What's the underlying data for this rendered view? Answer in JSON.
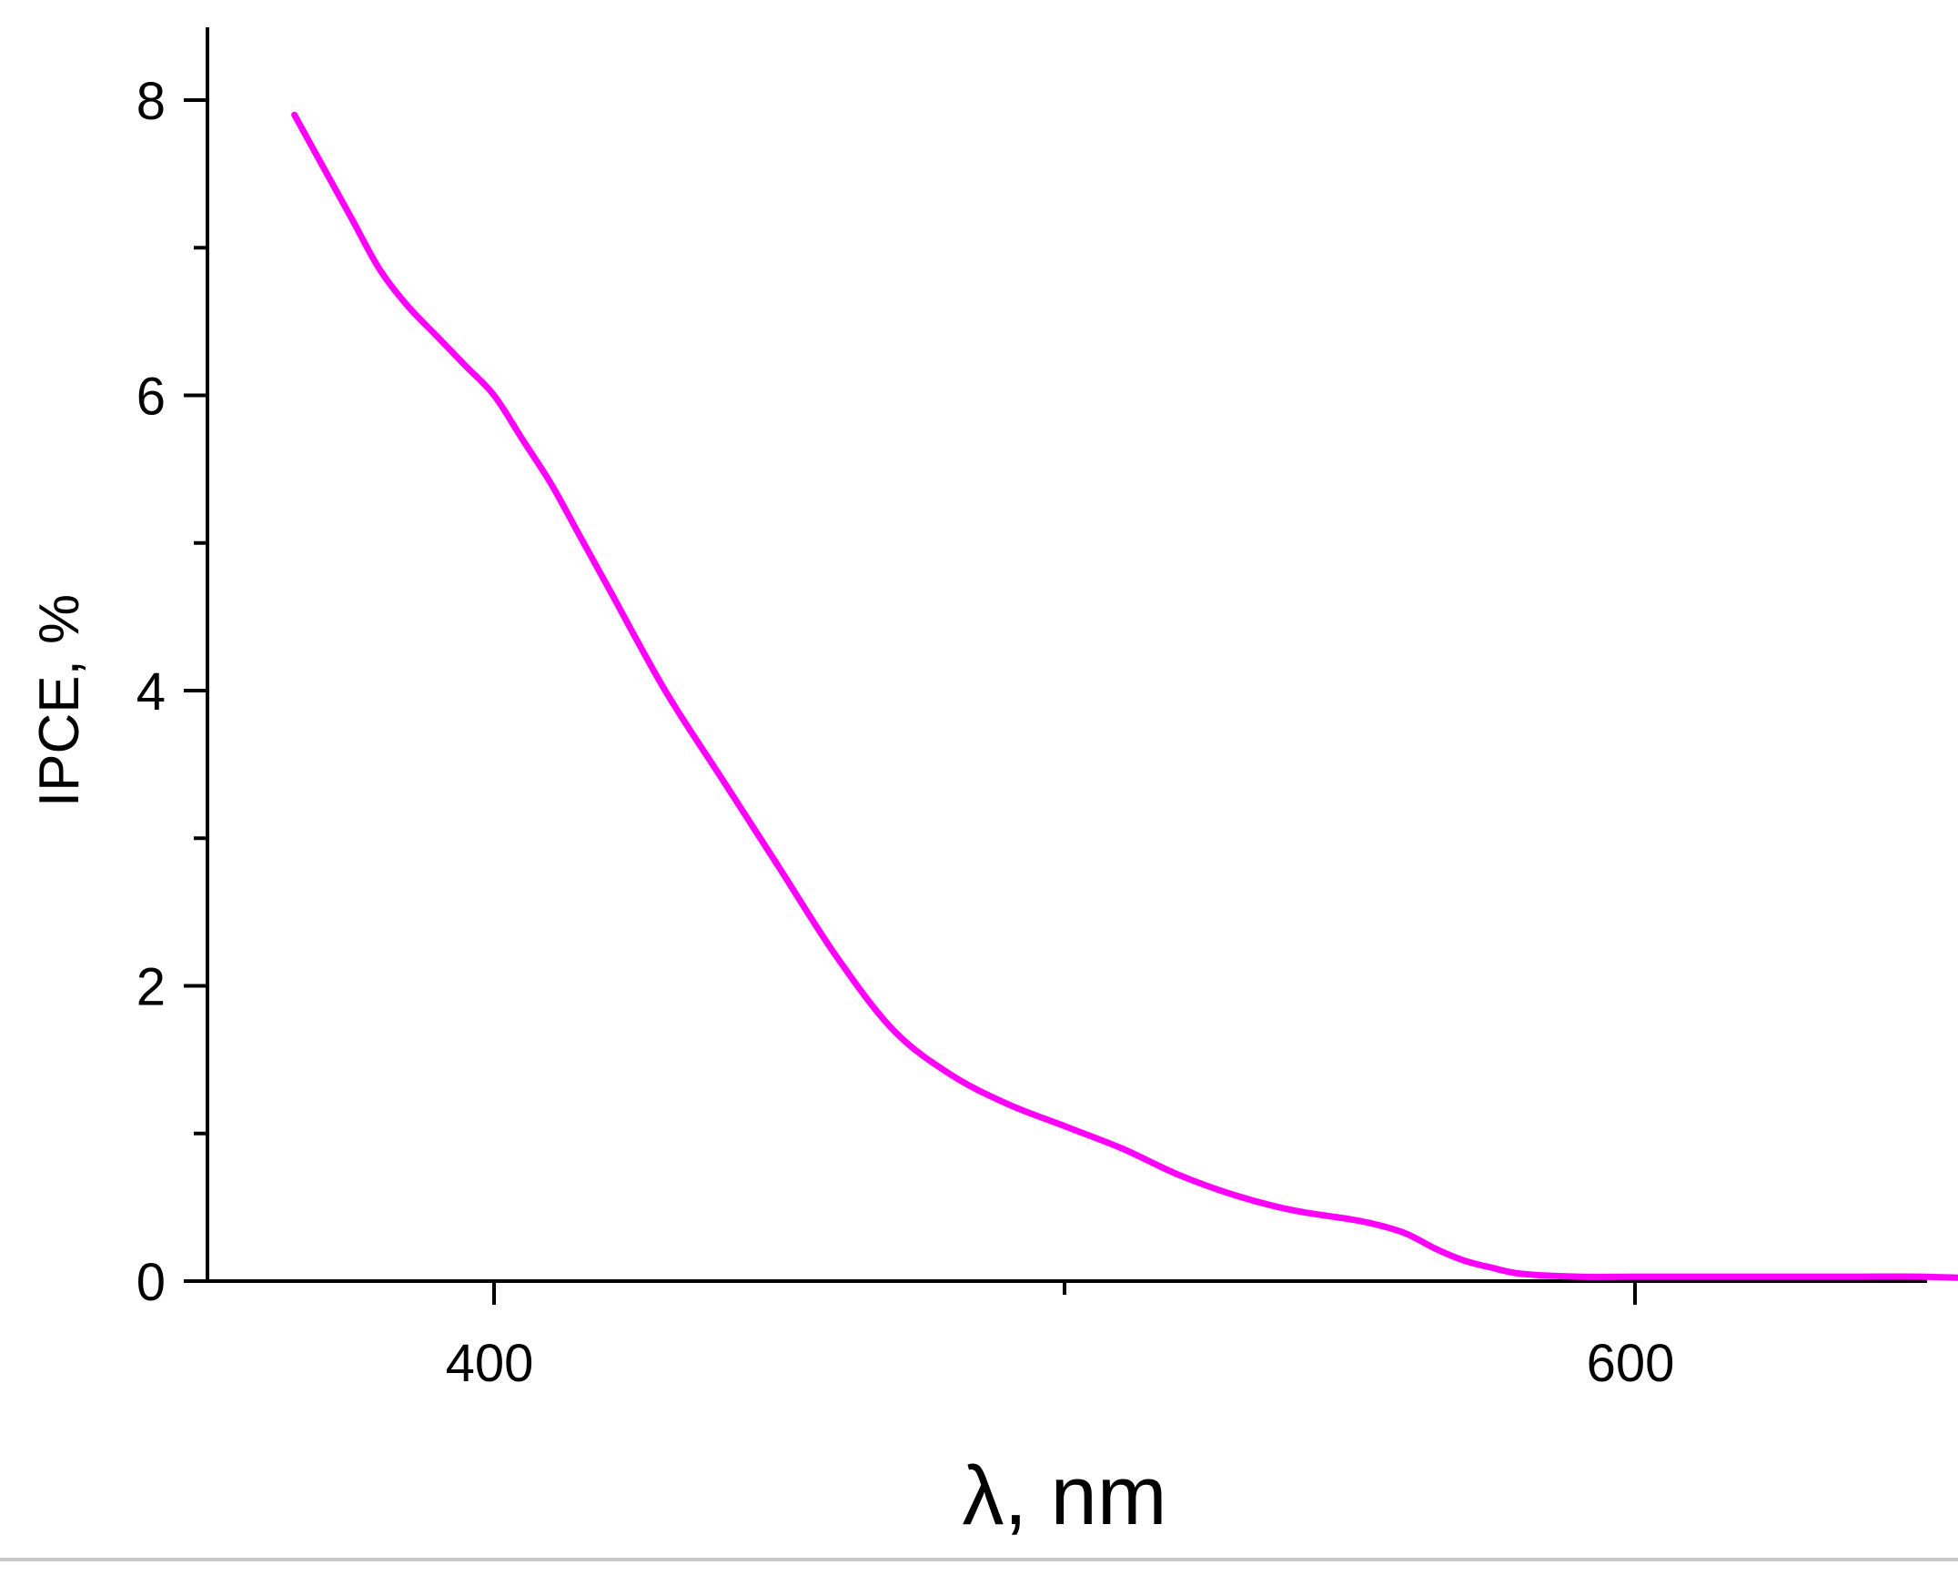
{
  "chart_data": {
    "type": "line",
    "title": "",
    "xlabel": "λ, nm",
    "ylabel": "IPCE, %",
    "xlim": [
      350,
      670
    ],
    "ylim": [
      0,
      8.5
    ],
    "x_ticks": [
      400,
      600
    ],
    "x_minor_ticks": [
      500
    ],
    "y_ticks": [
      0,
      2,
      4,
      6,
      8
    ],
    "y_minor_ticks": [
      1,
      3,
      5,
      7
    ],
    "grid": false,
    "legend": "none",
    "series": [
      {
        "color": "#ff00ff",
        "x": [
          365,
          370,
          375,
          380,
          385,
          390,
          395,
          400,
          405,
          410,
          415,
          420,
          430,
          440,
          450,
          460,
          470,
          480,
          490,
          500,
          510,
          520,
          530,
          540,
          550,
          555,
          560,
          565,
          570,
          575,
          580,
          590,
          600,
          610,
          620,
          630,
          640,
          650,
          660,
          667
        ],
        "y": [
          7.9,
          7.55,
          7.2,
          6.85,
          6.6,
          6.4,
          6.2,
          6.0,
          5.7,
          5.4,
          5.05,
          4.7,
          4.0,
          3.4,
          2.8,
          2.2,
          1.7,
          1.4,
          1.2,
          1.05,
          0.9,
          0.72,
          0.58,
          0.48,
          0.42,
          0.38,
          0.32,
          0.22,
          0.14,
          0.09,
          0.05,
          0.03,
          0.03,
          0.03,
          0.03,
          0.03,
          0.03,
          0.03,
          0.02,
          0.02
        ]
      }
    ]
  }
}
